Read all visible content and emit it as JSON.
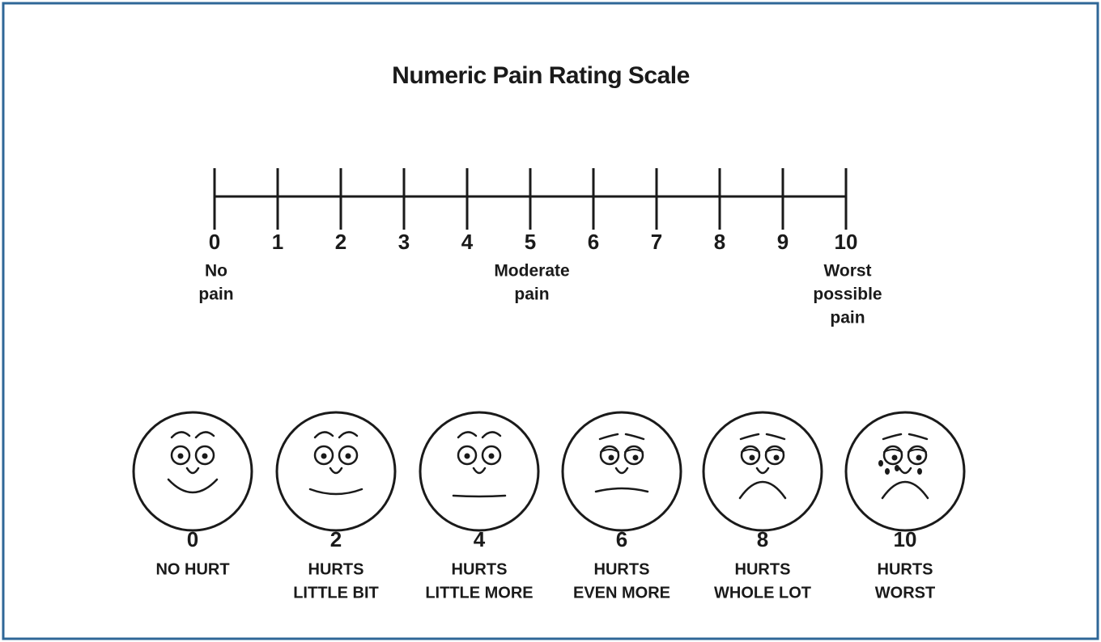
{
  "title": "Numeric Pain Rating Scale",
  "scale": {
    "ticks": [
      0,
      1,
      2,
      3,
      4,
      5,
      6,
      7,
      8,
      9,
      10
    ],
    "anchors": [
      {
        "tick": 0,
        "lines": [
          "No",
          "pain"
        ]
      },
      {
        "tick": 5,
        "lines": [
          "Moderate",
          "pain"
        ]
      },
      {
        "tick": 10,
        "lines": [
          "Worst",
          "possible",
          "pain"
        ]
      }
    ]
  },
  "faces": [
    {
      "rating": 0,
      "lines": [
        "NO HURT"
      ]
    },
    {
      "rating": 2,
      "lines": [
        "HURTS",
        "LITTLE BIT"
      ]
    },
    {
      "rating": 4,
      "lines": [
        "HURTS",
        "LITTLE MORE"
      ]
    },
    {
      "rating": 6,
      "lines": [
        "HURTS",
        "EVEN MORE"
      ]
    },
    {
      "rating": 8,
      "lines": [
        "HURTS",
        "WHOLE LOT"
      ]
    },
    {
      "rating": 10,
      "lines": [
        "HURTS",
        "WORST"
      ]
    }
  ]
}
